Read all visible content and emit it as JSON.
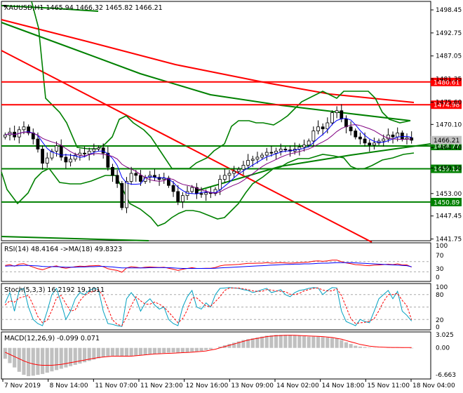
{
  "window": {
    "symbol_header": "XAUUSD,H1  1465.94 1466.32 1465.82 1466.21"
  },
  "colors": {
    "background": "#ffffff",
    "frame": "#000000",
    "trendline_red": "#ff0000",
    "channel_green": "#008000",
    "bands_green": "#008000",
    "candles": "#000000",
    "price_box_red": "#ff0000",
    "price_box_green": "#008000",
    "current_price_box": "#c0c0c0",
    "ma_fast": "#0000ff",
    "ma_slow": "#800080",
    "rsi_line": "#ff0000",
    "rsi_ma_line": "#0000ff",
    "stoch_main": "#00a0c0",
    "stoch_signal": "#ff0000",
    "macd_histogram": "#c0c0c0",
    "macd_signal": "#ff0000"
  },
  "chart_data": [
    {
      "type": "candlestick",
      "title": "XAUUSD,H1  1465.94 1466.32 1465.82 1466.21",
      "ohlc_last": {
        "open": 1465.94,
        "high": 1466.32,
        "low": 1465.82,
        "close": 1466.21
      },
      "ylim": [
        1441.5,
        1500.2
      ],
      "y_ticks": [
        "1498.45",
        "1492.75",
        "1487.05",
        "1481.35",
        "1475.60",
        "1470.10",
        "1464.40",
        "1459.30",
        "1453.00",
        "1447.45",
        "1441.75"
      ],
      "horizontal_levels": [
        {
          "label": "1480.61",
          "value": 1480.61,
          "color": "red"
        },
        {
          "label": "1474.98",
          "value": 1474.98,
          "color": "red"
        },
        {
          "label": "1464.77",
          "value": 1464.77,
          "color": "green"
        },
        {
          "label": "1459.12",
          "value": 1459.12,
          "color": "green"
        },
        {
          "label": "1450.89",
          "value": 1450.89,
          "color": "green"
        }
      ],
      "current_price_label": "1466.21",
      "x_tick_labels": [
        "7 Nov 2019",
        "8 Nov 14:00",
        "11 Nov 07:00",
        "11 Nov 23:00",
        "12 Nov 16:00",
        "13 Nov 09:00",
        "14 Nov 02:00",
        "14 Nov 18:00",
        "15 Nov 11:00",
        "18 Nov 04:00"
      ],
      "price_series_close": [
        1467.5,
        1468.2,
        1467.0,
        1468.8,
        1469.5,
        1468.0,
        1466.5,
        1464.0,
        1460.5,
        1461.8,
        1463.5,
        1464.8,
        1462.0,
        1460.8,
        1461.5,
        1462.5,
        1463.0,
        1462.8,
        1463.5,
        1464.0,
        1464.3,
        1463.0,
        1459.5,
        1457.5,
        1455.5,
        1449.5,
        1456.0,
        1458.0,
        1457.5,
        1456.0,
        1457.0,
        1457.5,
        1457.0,
        1456.5,
        1456.8,
        1455.0,
        1453.5,
        1451.0,
        1452.5,
        1453.5,
        1454.5,
        1453.0,
        1452.8,
        1453.2,
        1453.0,
        1454.0,
        1456.5,
        1457.5,
        1458.0,
        1458.5,
        1459.0,
        1460.0,
        1461.2,
        1461.5,
        1462.0,
        1462.5,
        1463.2,
        1463.0,
        1463.5,
        1464.0,
        1463.8,
        1463.5,
        1464.0,
        1464.5,
        1465.0,
        1466.0,
        1468.5,
        1469.5,
        1469.0,
        1470.5,
        1473.0,
        1473.5,
        1471.5,
        1469.5,
        1468.5,
        1467.0,
        1466.5,
        1465.5,
        1465.0,
        1465.5,
        1466.0,
        1466.5,
        1467.5,
        1467.0,
        1468.0,
        1466.5,
        1466.8,
        1466.2
      ],
      "moving_averages": [
        {
          "name": "MA fast",
          "color": "blue"
        },
        {
          "name": "MA slow",
          "color": "purple"
        }
      ],
      "grid": false
    },
    {
      "type": "line",
      "title": "RSI(14) 48.4164 ->MA(18) 49.8323",
      "y_tick_labels": [
        "100",
        "70",
        "30",
        "0"
      ],
      "levels": [
        70,
        30
      ],
      "ylim": [
        0,
        100
      ],
      "series": [
        {
          "values": [
            55,
            58,
            52,
            60,
            62,
            55,
            48,
            42,
            38,
            44,
            50,
            53,
            47,
            44,
            47,
            50,
            52,
            51,
            53,
            54,
            55,
            50,
            42,
            38,
            35,
            28,
            45,
            50,
            48,
            45,
            48,
            49,
            48,
            47,
            48,
            44,
            40,
            35,
            40,
            43,
            46,
            43,
            43,
            44,
            44,
            47,
            53,
            56,
            57,
            58,
            59,
            61,
            63,
            63,
            64,
            64,
            66,
            64,
            65,
            66,
            65,
            64,
            65,
            66,
            67,
            68,
            72,
            73,
            71,
            73,
            76,
            76,
            70,
            65,
            62,
            58,
            57,
            55,
            54,
            56,
            57,
            58,
            60,
            58,
            61,
            57,
            57,
            48.4
          ]
        },
        {
          "values": [
            52,
            53,
            53,
            54,
            55,
            55,
            54,
            53,
            51,
            50,
            50,
            50,
            49,
            48,
            48,
            48,
            49,
            49,
            50,
            50,
            51,
            51,
            50,
            49,
            47,
            45,
            45,
            45,
            45,
            45,
            45,
            46,
            46,
            46,
            46,
            46,
            45,
            44,
            43,
            43,
            43,
            43,
            43,
            43,
            43,
            44,
            45,
            46,
            47,
            48,
            49,
            50,
            51,
            52,
            53,
            54,
            55,
            56,
            57,
            58,
            59,
            59,
            60,
            60,
            61,
            61,
            62,
            63,
            64,
            64,
            65,
            66,
            66,
            66,
            66,
            65,
            64,
            63,
            62,
            61,
            60,
            59,
            58,
            57,
            56,
            55,
            54,
            49.8
          ]
        }
      ]
    },
    {
      "type": "line",
      "title": "Stoch(5,3,3) 16.2192 19.1011",
      "y_tick_labels": [
        "100",
        "80",
        "20",
        "0"
      ],
      "levels": [
        80,
        50,
        20
      ],
      "ylim": [
        0,
        100
      ],
      "series": [
        {
          "values": [
            60,
            85,
            40,
            90,
            95,
            50,
            20,
            10,
            5,
            40,
            80,
            95,
            60,
            20,
            40,
            70,
            85,
            80,
            90,
            95,
            92,
            40,
            10,
            8,
            5,
            3,
            70,
            85,
            70,
            40,
            60,
            70,
            55,
            45,
            50,
            20,
            10,
            5,
            50,
            75,
            90,
            50,
            45,
            60,
            50,
            80,
            95,
            96,
            97,
            96,
            95,
            92,
            90,
            85,
            88,
            92,
            95,
            85,
            88,
            92,
            80,
            75,
            85,
            90,
            92,
            95,
            97,
            96,
            80,
            90,
            97,
            96,
            40,
            15,
            10,
            5,
            20,
            15,
            12,
            40,
            70,
            80,
            90,
            70,
            88,
            40,
            30,
            16.2
          ]
        },
        {
          "values": [
            55,
            65,
            62,
            72,
            75,
            78,
            55,
            27,
            12,
            18,
            42,
            72,
            78,
            58,
            40,
            43,
            65,
            78,
            85,
            88,
            92,
            76,
            47,
            19,
            8,
            5,
            26,
            53,
            75,
            65,
            57,
            57,
            62,
            57,
            50,
            38,
            25,
            12,
            22,
            43,
            72,
            72,
            62,
            52,
            52,
            63,
            75,
            90,
            96,
            96,
            96,
            94,
            92,
            89,
            88,
            88,
            92,
            91,
            89,
            88,
            87,
            81,
            80,
            83,
            89,
            92,
            95,
            96,
            91,
            89,
            89,
            94,
            78,
            50,
            22,
            10,
            12,
            13,
            16,
            22,
            41,
            63,
            80,
            80,
            83,
            66,
            53,
            19.1
          ]
        }
      ]
    },
    {
      "type": "bar",
      "title": "MACD(12,26,9) -0.099 0.071",
      "y_tick_labels": [
        "3.025",
        "0.00",
        "-6.663"
      ],
      "ylim": [
        -6.663,
        3.025
      ],
      "histogram": [
        -2.5,
        -3.5,
        -4.5,
        -5.5,
        -6.2,
        -6.5,
        -6.4,
        -6.2,
        -6.0,
        -5.7,
        -5.4,
        -5.1,
        -4.8,
        -4.5,
        -4.2,
        -3.9,
        -3.6,
        -3.3,
        -3.0,
        -2.7,
        -2.4,
        -2.1,
        -1.9,
        -1.8,
        -1.8,
        -2.0,
        -2.0,
        -1.9,
        -1.8,
        -1.7,
        -1.6,
        -1.5,
        -1.4,
        -1.3,
        -1.2,
        -1.1,
        -1.05,
        -1.1,
        -1.05,
        -1.0,
        -0.9,
        -0.8,
        -0.7,
        -0.5,
        -0.3,
        0.0,
        0.3,
        0.6,
        0.9,
        1.2,
        1.5,
        1.8,
        2.0,
        2.2,
        2.4,
        2.6,
        2.8,
        2.9,
        3.0,
        3.0,
        3.0,
        3.0,
        2.9,
        2.8,
        2.7,
        2.6,
        2.6,
        2.6,
        2.5,
        2.4,
        2.3,
        2.2,
        1.8,
        1.3,
        0.9,
        0.5,
        0.3,
        0.2,
        0.1,
        0.05,
        0.0,
        0.0,
        0.05,
        0.1,
        0.1,
        0.05,
        0.0,
        -0.099
      ],
      "signal": [
        -1.0,
        -1.5,
        -2.0,
        -2.5,
        -3.0,
        -3.4,
        -3.7,
        -3.9,
        -4.0,
        -4.0,
        -4.0,
        -3.9,
        -3.8,
        -3.6,
        -3.4,
        -3.2,
        -3.0,
        -2.8,
        -2.6,
        -2.4,
        -2.2,
        -2.1,
        -2.0,
        -1.9,
        -1.9,
        -1.9,
        -1.9,
        -1.9,
        -1.8,
        -1.7,
        -1.6,
        -1.5,
        -1.4,
        -1.35,
        -1.3,
        -1.25,
        -1.2,
        -1.15,
        -1.1,
        -1.05,
        -1.0,
        -0.9,
        -0.8,
        -0.7,
        -0.5,
        -0.3,
        0.0,
        0.3,
        0.6,
        0.9,
        1.2,
        1.5,
        1.8,
        2.0,
        2.2,
        2.4,
        2.6,
        2.7,
        2.8,
        2.85,
        2.9,
        2.9,
        2.9,
        2.85,
        2.8,
        2.75,
        2.7,
        2.65,
        2.6,
        2.5,
        2.4,
        2.2,
        2.0,
        1.7,
        1.4,
        1.1,
        0.8,
        0.6,
        0.4,
        0.3,
        0.2,
        0.15,
        0.12,
        0.1,
        0.1,
        0.09,
        0.08,
        0.071
      ]
    }
  ]
}
